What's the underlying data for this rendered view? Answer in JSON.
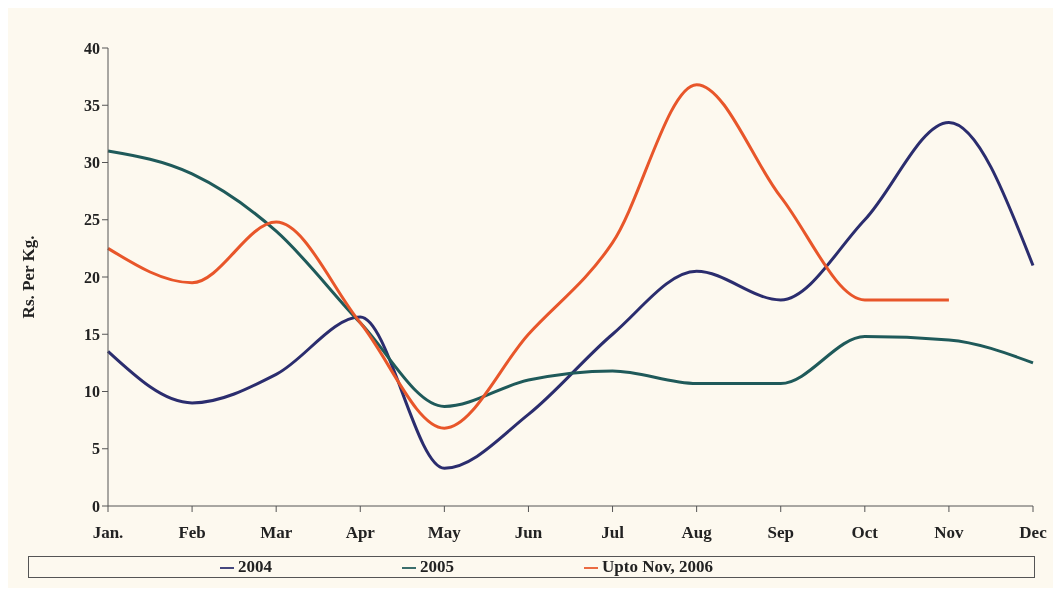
{
  "chart_data": {
    "type": "line",
    "ylabel": "Rs. Per Kg.",
    "categories": [
      "Jan.",
      "Feb",
      "Mar",
      "Apr",
      "May",
      "Jun",
      "Jul",
      "Aug",
      "Sep",
      "Oct",
      "Nov",
      "Dec"
    ],
    "series": [
      {
        "name": "2004",
        "color": "#2b2d6e",
        "values": [
          13.5,
          9,
          11.5,
          16.5,
          3.3,
          8,
          15,
          20.5,
          18,
          25,
          33.5,
          21
        ]
      },
      {
        "name": "2005",
        "color": "#1f5a5a",
        "values": [
          31,
          29,
          24,
          16,
          8.7,
          11,
          11.8,
          10.7,
          10.7,
          14.8,
          14.5,
          12.5
        ]
      },
      {
        "name": "Upto Nov, 2006",
        "color": "#e8562a",
        "values": [
          22.5,
          19.5,
          24.8,
          16,
          6.8,
          15,
          23,
          36.8,
          27,
          18,
          18,
          null
        ]
      }
    ],
    "ylim": [
      0,
      40
    ],
    "yticks": [
      0,
      5,
      10,
      15,
      20,
      25,
      30,
      35,
      40
    ],
    "grid": false,
    "legend": "bottom",
    "marker": "none",
    "line_style": "solid"
  }
}
